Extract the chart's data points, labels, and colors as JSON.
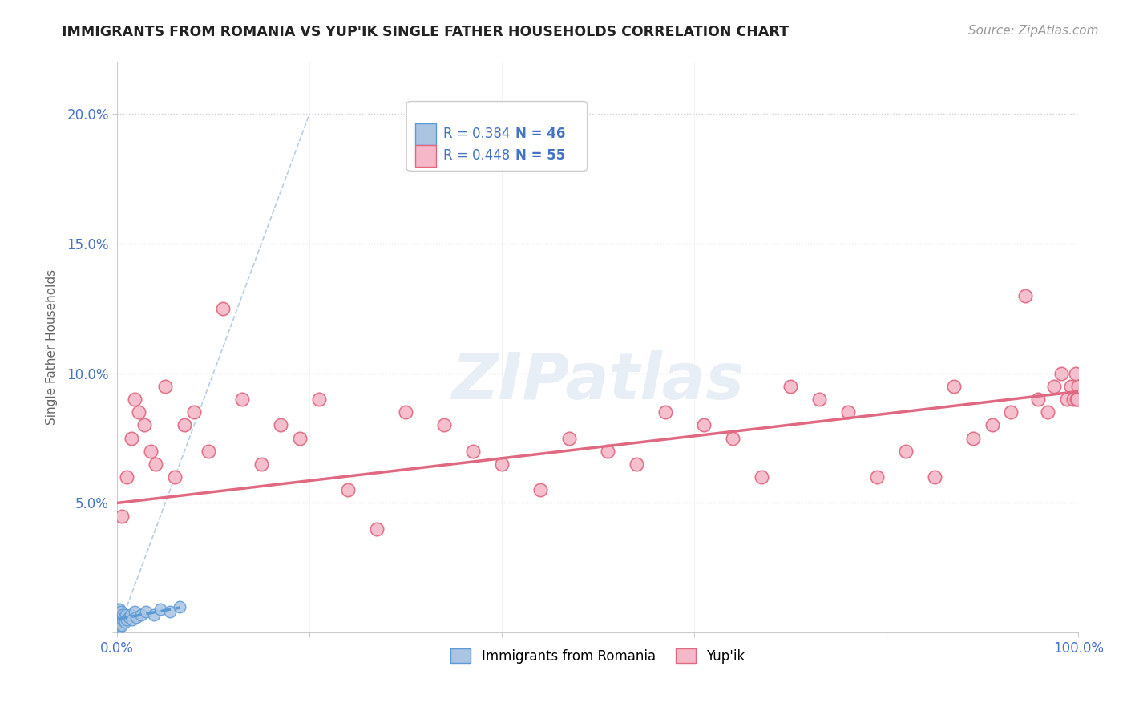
{
  "title": "IMMIGRANTS FROM ROMANIA VS YUP'IK SINGLE FATHER HOUSEHOLDS CORRELATION CHART",
  "source": "Source: ZipAtlas.com",
  "ylabel": "Single Father Households",
  "xlim": [
    0,
    1.0
  ],
  "ylim": [
    0,
    0.22
  ],
  "xticks": [
    0.0,
    0.2,
    0.4,
    0.6,
    0.8,
    1.0
  ],
  "xticklabels": [
    "0.0%",
    "",
    "",
    "",
    "",
    "100.0%"
  ],
  "yticks": [
    0.0,
    0.05,
    0.1,
    0.15,
    0.2
  ],
  "yticklabels": [
    "",
    "5.0%",
    "10.0%",
    "15.0%",
    "20.0%"
  ],
  "grid_color": "#cccccc",
  "background_color": "#ffffff",
  "romania_color": "#aac4e2",
  "romania_edge": "#5b9bd5",
  "yupik_color": "#f4b8c8",
  "yupik_edge": "#e06880",
  "trendline_romania_color": "#5b9bd5",
  "trendline_yupik_color": "#e06880",
  "diagonal_color": "#b0c8e0",
  "legend_r1": "R = 0.384",
  "legend_n1": "N = 46",
  "legend_r2": "R = 0.448",
  "legend_n2": "N = 55",
  "romania_x": [
    0.0005,
    0.0006,
    0.0007,
    0.0008,
    0.0009,
    0.001,
    0.001,
    0.001,
    0.001,
    0.001,
    0.0012,
    0.0013,
    0.0014,
    0.0015,
    0.0015,
    0.002,
    0.002,
    0.002,
    0.002,
    0.002,
    0.0025,
    0.003,
    0.003,
    0.003,
    0.004,
    0.004,
    0.004,
    0.005,
    0.005,
    0.006,
    0.006,
    0.007,
    0.008,
    0.009,
    0.01,
    0.012,
    0.014,
    0.016,
    0.018,
    0.02,
    0.025,
    0.03,
    0.038,
    0.045,
    0.055,
    0.065
  ],
  "romania_y": [
    0.005,
    0.008,
    0.003,
    0.006,
    0.004,
    0.002,
    0.007,
    0.005,
    0.003,
    0.009,
    0.004,
    0.006,
    0.003,
    0.005,
    0.008,
    0.004,
    0.007,
    0.002,
    0.006,
    0.009,
    0.005,
    0.003,
    0.007,
    0.006,
    0.004,
    0.008,
    0.005,
    0.006,
    0.003,
    0.007,
    0.005,
    0.006,
    0.004,
    0.007,
    0.005,
    0.006,
    0.007,
    0.005,
    0.008,
    0.006,
    0.007,
    0.008,
    0.007,
    0.009,
    0.008,
    0.01
  ],
  "yupik_x": [
    0.005,
    0.01,
    0.015,
    0.018,
    0.022,
    0.028,
    0.035,
    0.04,
    0.05,
    0.06,
    0.07,
    0.08,
    0.095,
    0.11,
    0.13,
    0.15,
    0.17,
    0.19,
    0.21,
    0.24,
    0.27,
    0.3,
    0.34,
    0.37,
    0.4,
    0.44,
    0.47,
    0.51,
    0.54,
    0.57,
    0.61,
    0.64,
    0.67,
    0.7,
    0.73,
    0.76,
    0.79,
    0.82,
    0.85,
    0.87,
    0.89,
    0.91,
    0.93,
    0.945,
    0.958,
    0.968,
    0.975,
    0.982,
    0.988,
    0.992,
    0.995,
    0.997,
    0.998,
    0.999,
    0.9995
  ],
  "yupik_y": [
    0.045,
    0.06,
    0.075,
    0.09,
    0.085,
    0.08,
    0.07,
    0.065,
    0.095,
    0.06,
    0.08,
    0.085,
    0.07,
    0.125,
    0.09,
    0.065,
    0.08,
    0.075,
    0.09,
    0.055,
    0.04,
    0.085,
    0.08,
    0.07,
    0.065,
    0.055,
    0.075,
    0.07,
    0.065,
    0.085,
    0.08,
    0.075,
    0.06,
    0.095,
    0.09,
    0.085,
    0.06,
    0.07,
    0.06,
    0.095,
    0.075,
    0.08,
    0.085,
    0.13,
    0.09,
    0.085,
    0.095,
    0.1,
    0.09,
    0.095,
    0.09,
    0.1,
    0.09,
    0.09,
    0.095
  ],
  "yupik_trend_start_y": 0.05,
  "yupik_trend_end_y": 0.093
}
